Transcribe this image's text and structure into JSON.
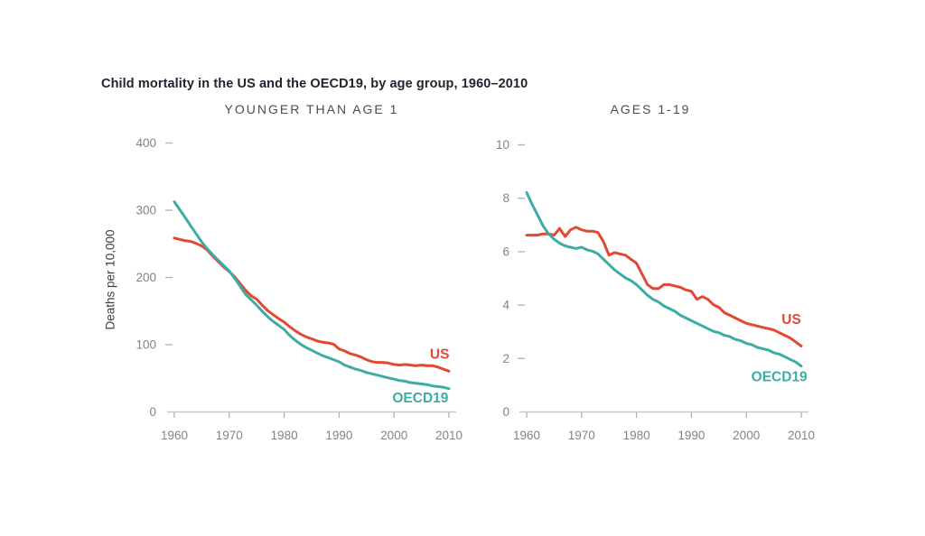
{
  "title": "Child mortality in the US and the OECD19, by age group, 1960–2010",
  "ylabel": "Deaths per 10,000",
  "colors": {
    "US": "#e24834",
    "OECD19": "#3daca5",
    "axis_line": "#c8c8c8",
    "tick_mark": "#b0b0b0",
    "tick_label": "#838383",
    "title_text": "#232330",
    "panel_title_text": "#4d4d4d"
  },
  "chart_data": [
    {
      "id": "under1",
      "type": "line",
      "title": "YOUNGER THAN AGE 1",
      "ylabel": "Deaths per 10,000",
      "xlabel": "",
      "grid": false,
      "legend_position": "inline-end-labels",
      "xlim": [
        1960,
        2010
      ],
      "ylim": [
        0,
        400
      ],
      "xticks": [
        1960,
        1970,
        1980,
        1990,
        2000,
        2010
      ],
      "yticks": [
        0,
        100,
        200,
        300,
        400
      ],
      "x": [
        1960,
        1961,
        1962,
        1963,
        1964,
        1965,
        1966,
        1967,
        1968,
        1969,
        1970,
        1971,
        1972,
        1973,
        1974,
        1975,
        1976,
        1977,
        1978,
        1979,
        1980,
        1981,
        1982,
        1983,
        1984,
        1985,
        1986,
        1987,
        1988,
        1989,
        1990,
        1991,
        1992,
        1993,
        1994,
        1995,
        1996,
        1997,
        1998,
        1999,
        2000,
        2001,
        2002,
        2003,
        2004,
        2005,
        2006,
        2007,
        2008,
        2009,
        2010
      ],
      "series": [
        {
          "name": "US",
          "label_pos": {
            "x": 2008.3,
            "y": 85
          },
          "values": [
            258,
            256,
            254,
            253,
            250,
            246,
            240,
            231,
            223,
            215,
            208,
            200,
            190,
            180,
            172,
            167,
            158,
            150,
            144,
            138,
            133,
            126,
            120,
            115,
            111,
            108,
            105,
            103,
            102,
            100,
            93,
            90,
            86,
            84,
            81,
            77,
            74,
            73,
            73,
            72,
            70,
            69,
            70,
            69,
            68,
            69,
            68,
            68,
            66,
            63,
            60
          ]
        },
        {
          "name": "OECD19",
          "label_pos": {
            "x": 2004.8,
            "y": 20
          },
          "values": [
            312,
            300,
            288,
            276,
            264,
            252,
            242,
            233,
            225,
            217,
            209,
            198,
            186,
            174,
            166,
            158,
            149,
            141,
            134,
            128,
            122,
            113,
            106,
            100,
            95,
            91,
            87,
            83,
            80,
            77,
            74,
            69,
            66,
            63,
            61,
            58,
            56,
            54,
            52,
            50,
            48,
            46,
            45,
            43,
            42,
            41,
            40,
            38,
            37,
            36,
            34
          ]
        }
      ]
    },
    {
      "id": "ages1to19",
      "type": "line",
      "title": "AGES 1-19",
      "ylabel": "Deaths per 10,000",
      "xlabel": "",
      "grid": false,
      "legend_position": "inline-end-labels",
      "xlim": [
        1960,
        2010
      ],
      "ylim": [
        0,
        10
      ],
      "xticks": [
        1960,
        1970,
        1980,
        1990,
        2000,
        2010
      ],
      "yticks": [
        0,
        2,
        4,
        6,
        8,
        10
      ],
      "x": [
        1960,
        1961,
        1962,
        1963,
        1964,
        1965,
        1966,
        1967,
        1968,
        1969,
        1970,
        1971,
        1972,
        1973,
        1974,
        1975,
        1976,
        1977,
        1978,
        1979,
        1980,
        1981,
        1982,
        1983,
        1984,
        1985,
        1986,
        1987,
        1988,
        1989,
        1990,
        1991,
        1992,
        1993,
        1994,
        1995,
        1996,
        1997,
        1998,
        1999,
        2000,
        2001,
        2002,
        2003,
        2004,
        2005,
        2006,
        2007,
        2008,
        2009,
        2010
      ],
      "series": [
        {
          "name": "US",
          "label_pos": {
            "x": 2008.2,
            "y": 3.45
          },
          "values": [
            6.6,
            6.6,
            6.6,
            6.65,
            6.65,
            6.6,
            6.85,
            6.55,
            6.8,
            6.9,
            6.8,
            6.75,
            6.75,
            6.7,
            6.35,
            5.85,
            5.95,
            5.9,
            5.85,
            5.7,
            5.55,
            5.15,
            4.75,
            4.6,
            4.6,
            4.75,
            4.75,
            4.7,
            4.65,
            4.55,
            4.5,
            4.2,
            4.3,
            4.2,
            4.0,
            3.9,
            3.7,
            3.6,
            3.5,
            3.4,
            3.3,
            3.25,
            3.2,
            3.15,
            3.1,
            3.05,
            2.95,
            2.85,
            2.75,
            2.6,
            2.45
          ]
        },
        {
          "name": "OECD19",
          "label_pos": {
            "x": 2006.0,
            "y": 1.3
          },
          "values": [
            8.2,
            7.75,
            7.35,
            6.95,
            6.65,
            6.45,
            6.3,
            6.2,
            6.15,
            6.1,
            6.15,
            6.05,
            6.0,
            5.9,
            5.7,
            5.5,
            5.3,
            5.15,
            5.0,
            4.9,
            4.75,
            4.55,
            4.35,
            4.2,
            4.1,
            3.95,
            3.85,
            3.75,
            3.6,
            3.5,
            3.4,
            3.3,
            3.2,
            3.1,
            3.0,
            2.95,
            2.85,
            2.8,
            2.7,
            2.65,
            2.55,
            2.5,
            2.4,
            2.35,
            2.3,
            2.2,
            2.15,
            2.05,
            1.95,
            1.85,
            1.7
          ]
        }
      ]
    }
  ]
}
